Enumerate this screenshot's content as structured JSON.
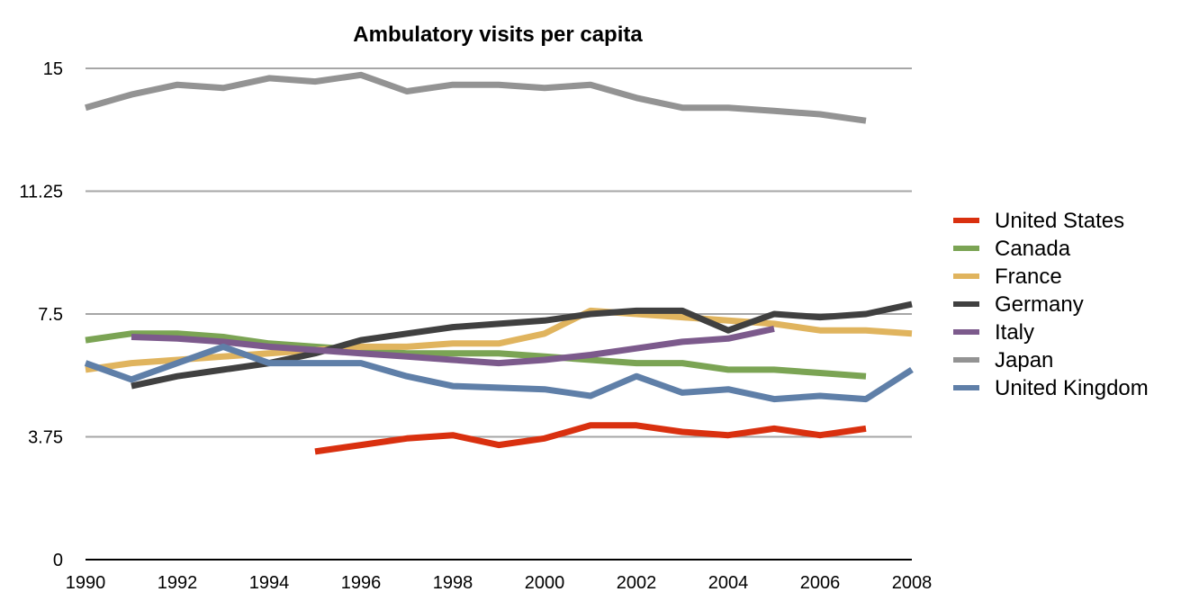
{
  "chart_data": {
    "type": "line",
    "title": "Ambulatory visits per capita",
    "xlabel": "",
    "ylabel": "",
    "x": [
      1990,
      1991,
      1992,
      1993,
      1994,
      1995,
      1996,
      1997,
      1998,
      1999,
      2000,
      2001,
      2002,
      2003,
      2004,
      2005,
      2006,
      2007,
      2008
    ],
    "xlim": [
      1990,
      2008
    ],
    "ylim": [
      0,
      15
    ],
    "x_ticks": [
      "1990",
      "1992",
      "1994",
      "1996",
      "1998",
      "2000",
      "2002",
      "2004",
      "2006",
      "2008"
    ],
    "y_ticks": [
      "0",
      "3.75",
      "7.5",
      "11.25",
      "15"
    ],
    "grid": "horizontal",
    "legend_position": "right",
    "series": [
      {
        "name": "United States",
        "color": "#d9300f",
        "values": [
          null,
          null,
          null,
          null,
          null,
          3.3,
          3.5,
          3.7,
          3.8,
          3.5,
          3.7,
          4.1,
          4.1,
          3.9,
          3.8,
          4.0,
          3.8,
          4.0,
          null
        ]
      },
      {
        "name": "Canada",
        "color": "#7ba454",
        "values": [
          6.7,
          6.9,
          6.9,
          6.8,
          6.6,
          6.5,
          6.4,
          6.3,
          6.3,
          6.3,
          6.2,
          6.1,
          6.0,
          6.0,
          5.8,
          5.8,
          5.7,
          5.6,
          null
        ]
      },
      {
        "name": "France",
        "color": "#e0b45e",
        "values": [
          5.8,
          6.0,
          6.1,
          6.2,
          6.3,
          6.4,
          6.5,
          6.5,
          6.6,
          6.6,
          6.9,
          7.6,
          7.5,
          7.4,
          7.3,
          7.2,
          7.0,
          7.0,
          6.9
        ]
      },
      {
        "name": "Germany",
        "color": "#404040",
        "values": [
          null,
          5.3,
          5.6,
          5.8,
          6.0,
          6.3,
          6.7,
          6.9,
          7.1,
          7.2,
          7.3,
          7.5,
          7.6,
          7.6,
          7.0,
          7.5,
          7.4,
          7.5,
          7.8
        ]
      },
      {
        "name": "Italy",
        "color": "#7c5a8c",
        "values": [
          null,
          6.8,
          6.75,
          6.65,
          6.5,
          6.4,
          6.3,
          6.2,
          6.1,
          6.0,
          6.1,
          6.25,
          6.45,
          6.65,
          6.75,
          7.05,
          null,
          null,
          null
        ]
      },
      {
        "name": "Japan",
        "color": "#939393",
        "values": [
          13.8,
          14.2,
          14.5,
          14.4,
          14.7,
          14.6,
          14.8,
          14.3,
          14.5,
          14.5,
          14.4,
          14.5,
          14.1,
          13.8,
          13.8,
          13.7,
          13.6,
          13.4,
          null
        ]
      },
      {
        "name": "United Kingdom",
        "color": "#5f7fa8",
        "values": [
          6.0,
          5.5,
          6.0,
          6.5,
          6.0,
          6.0,
          6.0,
          5.6,
          5.3,
          5.25,
          5.2,
          5.0,
          5.6,
          5.1,
          5.2,
          4.9,
          5.0,
          4.9,
          5.8
        ]
      }
    ]
  }
}
